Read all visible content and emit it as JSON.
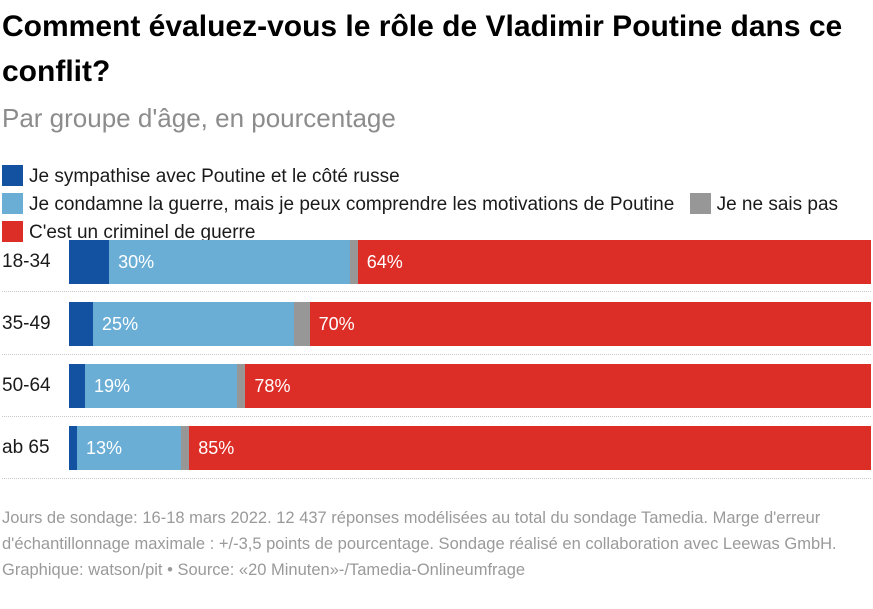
{
  "title": "Comment évaluez-vous le rôle de Vladimir Poutine dans ce conflit?",
  "subtitle": "Par groupe d'âge, en pourcentage",
  "legend": [
    {
      "label": "Je sympathise avec Poutine et le côté russe",
      "color": "#1352a0"
    },
    {
      "label": "Je condamne la guerre, mais je peux comprendre les motivations de Poutine",
      "color": "#6aaed6"
    },
    {
      "label": "Je ne sais pas",
      "color": "#979797"
    },
    {
      "label": "C'est un criminel de guerre",
      "color": "#dc2d27"
    }
  ],
  "chart_data": {
    "type": "bar",
    "orientation": "horizontal",
    "stacked": true,
    "title": "Comment évaluez-vous le rôle de Vladimir Poutine dans ce conflit?",
    "subtitle": "Par groupe d'âge, en pourcentage",
    "categories": [
      "18-34",
      "35-49",
      "50-64",
      "ab 65"
    ],
    "series": [
      {
        "name": "Je sympathise avec Poutine et le côté russe",
        "values": [
          5,
          3,
          2,
          1
        ]
      },
      {
        "name": "Je condamne la guerre, mais je peux comprendre les motivations de Poutine",
        "values": [
          30,
          25,
          19,
          13
        ]
      },
      {
        "name": "Je ne sais pas",
        "values": [
          1,
          2,
          1,
          1
        ]
      },
      {
        "name": "C'est un criminel de guerre",
        "values": [
          64,
          70,
          78,
          85
        ]
      }
    ],
    "labeled_series": [
      1,
      3
    ],
    "xlim": [
      0,
      100
    ]
  },
  "footer": {
    "line1": "Jours de sondage: 16-18 mars 2022. 12 437 réponses modélisées au total du sondage Tamedia. Marge d'erreur d'échantillonnage maximale : +/-3,5 points de pourcentage. Sondage réalisé en collaboration avec Leewas GmbH.",
    "line2": "Graphique: watson/pit • Source: «20 Minuten»-/Tamedia-Onlineumfrage"
  }
}
